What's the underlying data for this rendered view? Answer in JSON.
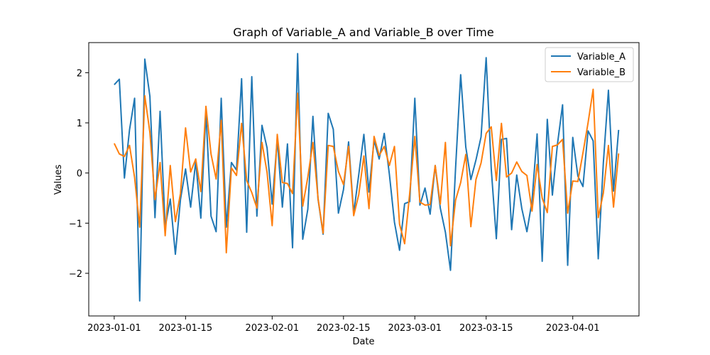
{
  "chart_data": {
    "type": "line",
    "title": "Graph of Variable_A and Variable_B over Time",
    "xlabel": "Date",
    "ylabel": "Values",
    "grid": false,
    "legend_position": "top-right",
    "xlim": [
      "2022-12-27",
      "2023-04-14"
    ],
    "ylim": [
      -2.85,
      2.6
    ],
    "x_ticks": [
      "2023-01-01",
      "2023-01-15",
      "2023-02-01",
      "2023-02-15",
      "2023-03-01",
      "2023-03-15",
      "2023-04-01"
    ],
    "y_ticks": [
      -2,
      -1,
      0,
      1,
      2
    ],
    "y_tick_labels": [
      "−2",
      "−1",
      "0",
      "1",
      "2"
    ],
    "x": [
      "2023-01-01",
      "2023-01-02",
      "2023-01-03",
      "2023-01-04",
      "2023-01-05",
      "2023-01-06",
      "2023-01-07",
      "2023-01-08",
      "2023-01-09",
      "2023-01-10",
      "2023-01-11",
      "2023-01-12",
      "2023-01-13",
      "2023-01-14",
      "2023-01-15",
      "2023-01-16",
      "2023-01-17",
      "2023-01-18",
      "2023-01-19",
      "2023-01-20",
      "2023-01-21",
      "2023-01-22",
      "2023-01-23",
      "2023-01-24",
      "2023-01-25",
      "2023-01-26",
      "2023-01-27",
      "2023-01-28",
      "2023-01-29",
      "2023-01-30",
      "2023-01-31",
      "2023-02-01",
      "2023-02-02",
      "2023-02-03",
      "2023-02-04",
      "2023-02-05",
      "2023-02-06",
      "2023-02-07",
      "2023-02-08",
      "2023-02-09",
      "2023-02-10",
      "2023-02-11",
      "2023-02-12",
      "2023-02-13",
      "2023-02-14",
      "2023-02-15",
      "2023-02-16",
      "2023-02-17",
      "2023-02-18",
      "2023-02-19",
      "2023-02-20",
      "2023-02-21",
      "2023-02-22",
      "2023-02-23",
      "2023-02-24",
      "2023-02-25",
      "2023-02-26",
      "2023-02-27",
      "2023-02-28",
      "2023-03-01",
      "2023-03-02",
      "2023-03-03",
      "2023-03-04",
      "2023-03-05",
      "2023-03-06",
      "2023-03-07",
      "2023-03-08",
      "2023-03-09",
      "2023-03-10",
      "2023-03-11",
      "2023-03-12",
      "2023-03-13",
      "2023-03-14",
      "2023-03-15",
      "2023-03-16",
      "2023-03-17",
      "2023-03-18",
      "2023-03-19",
      "2023-03-20",
      "2023-03-21",
      "2023-03-22",
      "2023-03-23",
      "2023-03-24",
      "2023-03-25",
      "2023-03-26",
      "2023-03-27",
      "2023-03-28",
      "2023-03-29",
      "2023-03-30",
      "2023-03-31",
      "2023-04-01",
      "2023-04-02",
      "2023-04-03",
      "2023-04-04",
      "2023-04-05",
      "2023-04-06",
      "2023-04-07",
      "2023-04-08",
      "2023-04-09",
      "2023-04-10"
    ],
    "series": [
      {
        "name": "Variable_A",
        "color": "#1f77b4",
        "values": [
          1.76,
          1.87,
          -0.1,
          0.86,
          1.49,
          -2.55,
          2.27,
          1.53,
          -0.89,
          1.23,
          -1.08,
          -0.52,
          -1.62,
          -0.53,
          0.08,
          -0.68,
          0.23,
          -0.9,
          1.21,
          -0.86,
          -1.17,
          1.49,
          -1.08,
          0.21,
          0.06,
          1.88,
          -1.18,
          1.92,
          -0.86,
          0.95,
          0.5,
          -0.62,
          0.67,
          -0.68,
          0.58,
          -1.49,
          2.38,
          -1.32,
          -0.72,
          1.13,
          -0.52,
          -1.22,
          1.19,
          0.87,
          -0.8,
          -0.33,
          0.62,
          -0.8,
          -0.03,
          0.77,
          -0.38,
          0.65,
          0.28,
          0.79,
          -0.02,
          -0.98,
          -1.54,
          -0.61,
          -0.57,
          1.49,
          -0.64,
          -0.3,
          -0.82,
          0.15,
          -0.7,
          -1.18,
          -1.94,
          0.1,
          1.96,
          0.52,
          -0.13,
          0.26,
          0.72,
          2.3,
          0.08,
          -1.31,
          0.67,
          0.69,
          -1.13,
          -0.04,
          -0.71,
          -1.17,
          -0.56,
          0.78,
          -1.76,
          1.07,
          -0.44,
          0.58,
          1.36,
          -1.84,
          0.71,
          -0.06,
          -0.27,
          0.84,
          0.64,
          -1.71,
          0.2,
          1.65,
          -0.36,
          0.86
        ]
      },
      {
        "name": "Variable_B",
        "color": "#ff7f0e",
        "values": [
          0.59,
          0.38,
          0.33,
          0.55,
          -0.09,
          -1.08,
          1.54,
          0.81,
          -0.53,
          0.21,
          -1.25,
          0.15,
          -0.97,
          -0.41,
          0.9,
          0.02,
          0.28,
          -0.37,
          1.33,
          0.38,
          -0.12,
          1.05,
          -1.59,
          0.1,
          -0.05,
          0.99,
          -0.15,
          -0.39,
          -0.7,
          0.61,
          0.01,
          -1.05,
          0.77,
          -0.19,
          -0.21,
          -0.41,
          1.59,
          -0.66,
          -0.08,
          0.61,
          -0.5,
          -1.2,
          0.55,
          0.53,
          0.03,
          -0.23,
          0.53,
          -0.85,
          -0.43,
          0.34,
          -0.71,
          0.73,
          0.35,
          0.53,
          0.15,
          0.53,
          -1.02,
          -1.41,
          -0.4,
          0.73,
          -0.58,
          -0.64,
          -0.63,
          0.15,
          -0.62,
          0.61,
          -1.45,
          -0.54,
          -0.19,
          0.37,
          -1.07,
          -0.13,
          0.2,
          0.79,
          0.92,
          -0.15,
          0.99,
          -0.08,
          0.0,
          0.22,
          0.03,
          -0.05,
          -0.76,
          0.17,
          -0.5,
          -0.79,
          0.53,
          0.56,
          0.67,
          -0.8,
          -0.16,
          -0.17,
          0.4,
          1.0,
          1.67,
          -0.89,
          -0.4,
          0.55,
          -0.68,
          0.39
        ]
      }
    ]
  }
}
